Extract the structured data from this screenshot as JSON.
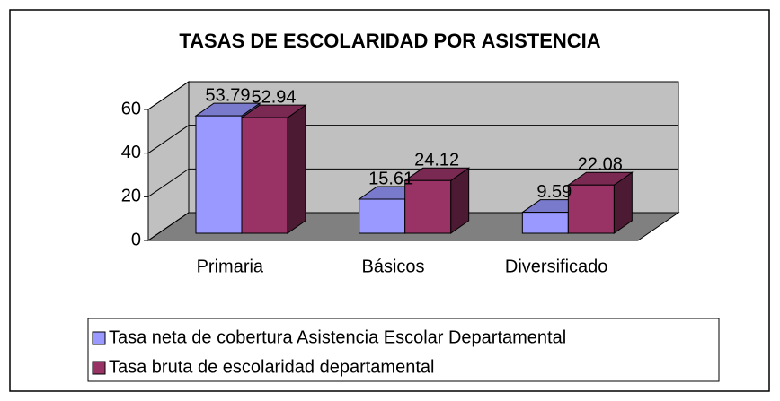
{
  "chart_data": {
    "type": "bar3d",
    "title": "TASAS DE ESCOLARIDAD POR ASISTENCIA",
    "categories": [
      "Primaria",
      "Básicos",
      "Diversificado"
    ],
    "series": [
      {
        "name": "Tasa neta de cobertura Asistencia Escolar Departamental",
        "color": "#9999ff",
        "values": [
          53.79,
          15.61,
          9.59
        ]
      },
      {
        "name": "Tasa bruta de escolaridad departamental",
        "color": "#993366",
        "values": [
          52.94,
          24.12,
          22.08
        ]
      }
    ],
    "ylim": [
      0,
      60
    ],
    "yticks": [
      0,
      20,
      40,
      60
    ],
    "grid": true
  }
}
